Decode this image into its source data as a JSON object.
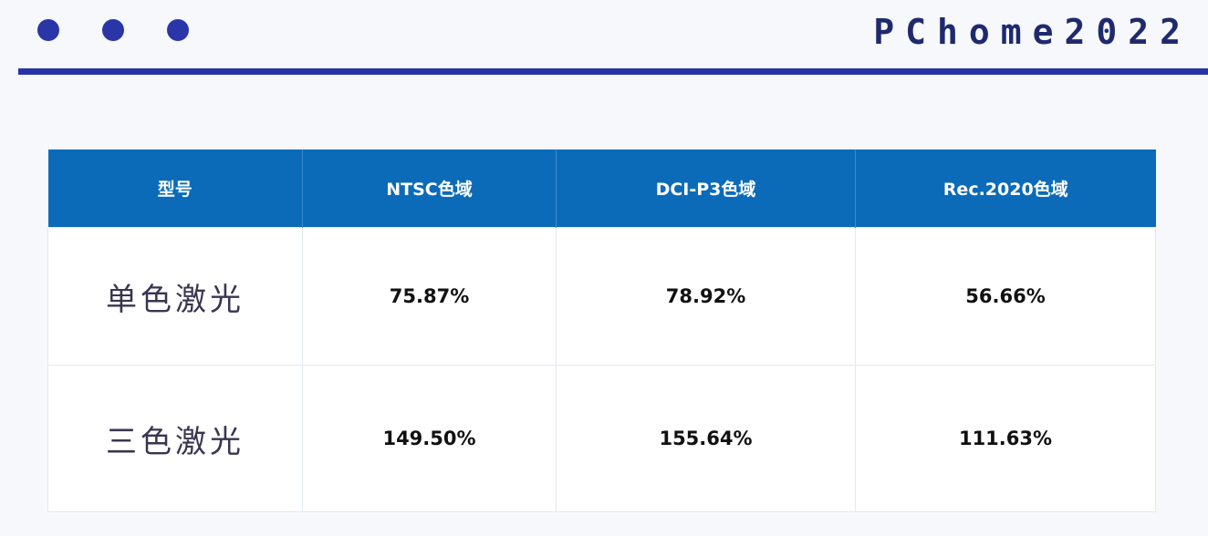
{
  "header": {
    "brand": "PChome2022",
    "dot_color": "#2a36a8",
    "rule_color": "#2a33a6"
  },
  "table": {
    "header_bg": "#0b6bb9",
    "columns": [
      "型号",
      "NTSC色域",
      "DCI-P3色域",
      "Rec.2020色域"
    ],
    "rows": [
      {
        "label": "单色激光",
        "values": [
          "75.87%",
          "78.92%",
          "56.66%"
        ]
      },
      {
        "label": "三色激光",
        "values": [
          "149.50%",
          "155.64%",
          "111.63%"
        ]
      }
    ]
  }
}
